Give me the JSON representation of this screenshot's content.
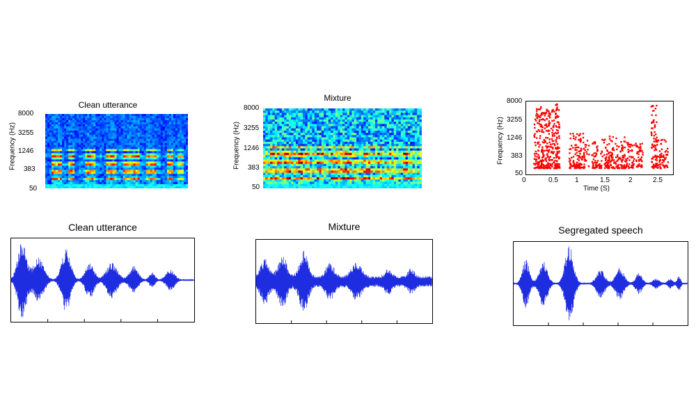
{
  "chart_data": [
    {
      "id": "clean-spectrogram",
      "type": "heatmap",
      "title": "Clean utterance",
      "ylabel": "Frequency (Hz)",
      "yticks": [
        "8000",
        "3255",
        "1246",
        "383",
        "50"
      ],
      "colormap": "jet",
      "activity": [
        0.1,
        0.9,
        0.9,
        0.2,
        0.95,
        0.1,
        0.2,
        0.9,
        0.85,
        0.2,
        0.1,
        0.9,
        0.85,
        0.2,
        0.9,
        0.85,
        0.95,
        0.2,
        0.85,
        0.9,
        0.3,
        0.1,
        0.9,
        0.2,
        0.8,
        0.1
      ]
    },
    {
      "id": "mixture-spectrogram",
      "type": "heatmap",
      "title": "Mixture",
      "ylabel": "Frequency (Hz)",
      "yticks": [
        "8000",
        "3255",
        "1246",
        "383",
        "50"
      ],
      "colormap": "jet",
      "activity": [
        0.5,
        0.8,
        0.7,
        0.9,
        0.6,
        0.9,
        0.7,
        0.5,
        0.75,
        0.5,
        0.8,
        0.6,
        0.85,
        0.7,
        0.5,
        0.8,
        0.6,
        0.7,
        0.5,
        0.65,
        0.5,
        0.7,
        0.5,
        0.5
      ]
    },
    {
      "id": "segregation-mask",
      "type": "scatter",
      "title": "",
      "xlabel": "Time (S)",
      "ylabel": "Frequency (Hz)",
      "yticks": [
        "8000",
        "3255",
        "1246",
        "383",
        "50"
      ],
      "xticks": [
        "0",
        "0.5",
        "1",
        "1.5",
        "2",
        "2.5"
      ],
      "xlim": [
        0,
        2.6
      ],
      "color": "#ff0000",
      "segments": [
        {
          "start": 0.12,
          "end": 0.55,
          "top": 0.95
        },
        {
          "start": 0.5,
          "end": 0.58,
          "top": 1.0
        },
        {
          "start": 0.75,
          "end": 1.1,
          "top": 0.55
        },
        {
          "start": 1.15,
          "end": 1.45,
          "top": 0.45
        },
        {
          "start": 1.45,
          "end": 1.75,
          "top": 0.5
        },
        {
          "start": 1.75,
          "end": 2.05,
          "top": 0.4
        },
        {
          "start": 2.2,
          "end": 2.3,
          "top": 1.0
        },
        {
          "start": 2.3,
          "end": 2.5,
          "top": 0.45
        }
      ]
    },
    {
      "id": "clean-waveform",
      "type": "line",
      "title": "Clean utterance",
      "color": "#1f2de0",
      "bursts": [
        {
          "center": 0.06,
          "width": 0.05,
          "amp": 0.95
        },
        {
          "center": 0.15,
          "width": 0.06,
          "amp": 0.55
        },
        {
          "center": 0.3,
          "width": 0.05,
          "amp": 0.8
        },
        {
          "center": 0.43,
          "width": 0.05,
          "amp": 0.45
        },
        {
          "center": 0.55,
          "width": 0.06,
          "amp": 0.45
        },
        {
          "center": 0.67,
          "width": 0.05,
          "amp": 0.35
        },
        {
          "center": 0.77,
          "width": 0.03,
          "amp": 0.2
        },
        {
          "center": 0.87,
          "width": 0.05,
          "amp": 0.25
        }
      ],
      "noise": 0.01
    },
    {
      "id": "mixture-waveform",
      "type": "line",
      "title": "Mixture",
      "color": "#1f2de0",
      "bursts": [
        {
          "center": 0.05,
          "width": 0.05,
          "amp": 0.45
        },
        {
          "center": 0.15,
          "width": 0.05,
          "amp": 0.55
        },
        {
          "center": 0.27,
          "width": 0.05,
          "amp": 0.65
        },
        {
          "center": 0.42,
          "width": 0.05,
          "amp": 0.35
        },
        {
          "center": 0.57,
          "width": 0.06,
          "amp": 0.35
        },
        {
          "center": 0.75,
          "width": 0.04,
          "amp": 0.2
        },
        {
          "center": 0.88,
          "width": 0.04,
          "amp": 0.2
        }
      ],
      "noise": 0.13
    },
    {
      "id": "segregated-waveform",
      "type": "line",
      "title": "Segregated speech",
      "color": "#1f2de0",
      "bursts": [
        {
          "center": 0.07,
          "width": 0.04,
          "amp": 0.6
        },
        {
          "center": 0.17,
          "width": 0.05,
          "amp": 0.55
        },
        {
          "center": 0.32,
          "width": 0.05,
          "amp": 0.95
        },
        {
          "center": 0.5,
          "width": 0.05,
          "amp": 0.35
        },
        {
          "center": 0.61,
          "width": 0.05,
          "amp": 0.4
        },
        {
          "center": 0.72,
          "width": 0.04,
          "amp": 0.25
        },
        {
          "center": 0.82,
          "width": 0.04,
          "amp": 0.12
        },
        {
          "center": 0.9,
          "width": 0.03,
          "amp": 0.12
        },
        {
          "center": 0.95,
          "width": 0.02,
          "amp": 0.2
        }
      ],
      "noise": 0.01
    }
  ]
}
